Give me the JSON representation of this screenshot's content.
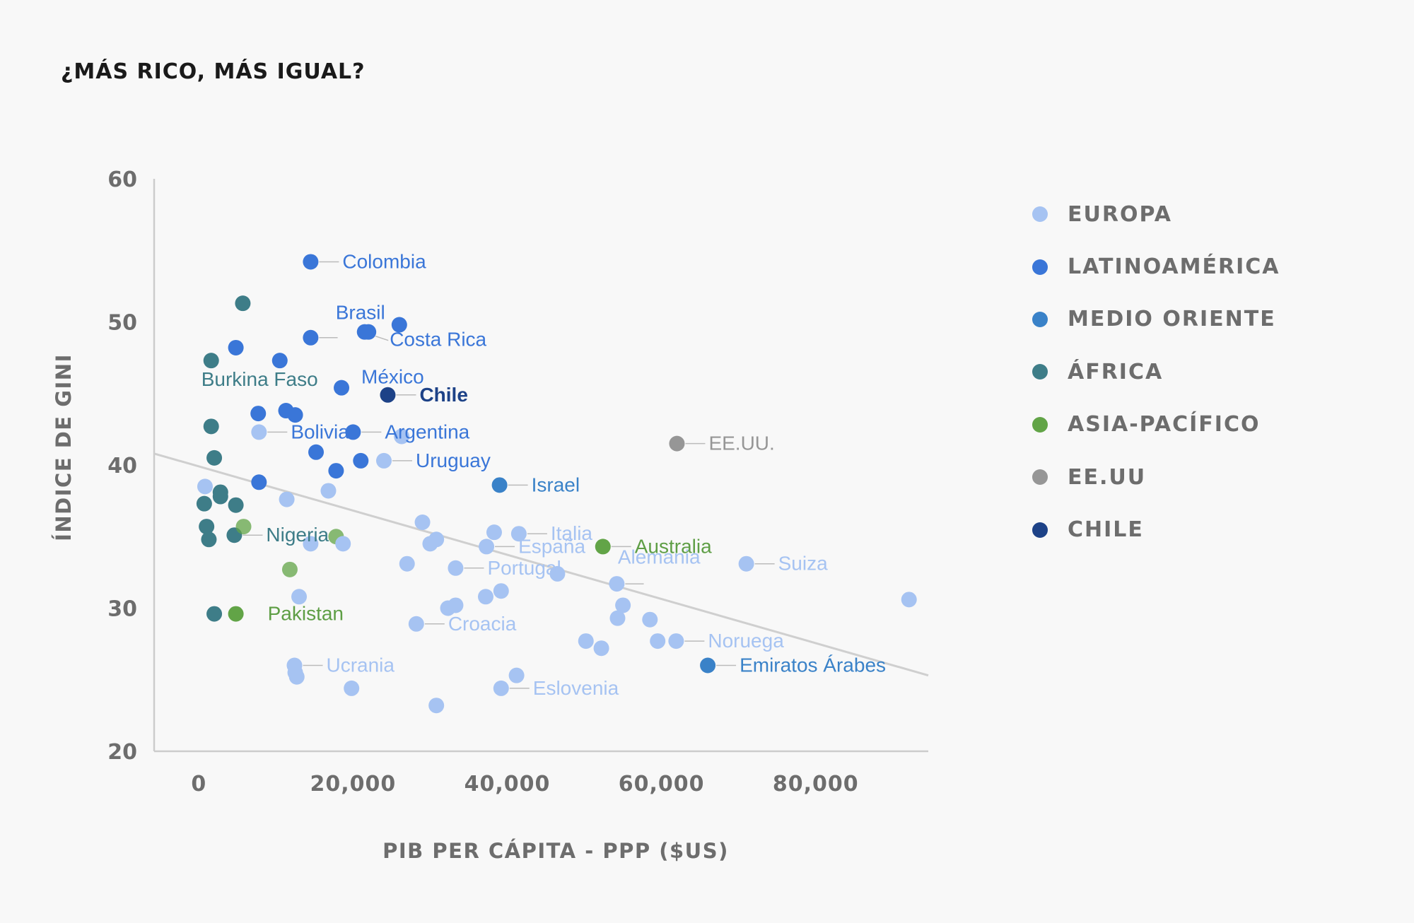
{
  "chart_data": {
    "type": "scatter",
    "title": "¿MÁS RICO, MÁS IGUAL?",
    "xlabel": "PIB PER CÁPITA - PPP ($US)",
    "ylabel": "ÍNDICE DE GINI",
    "xlim": [
      -5800,
      94600
    ],
    "ylim": [
      20,
      60
    ],
    "xticks": [
      0,
      20000,
      40000,
      60000,
      80000
    ],
    "xtick_labels": [
      "0",
      "20,000",
      "40,000",
      "60,000",
      "80,000"
    ],
    "yticks": [
      20,
      30,
      40,
      50,
      60
    ],
    "ytick_labels": [
      "20",
      "30",
      "40",
      "50",
      "60"
    ],
    "grid": false,
    "legend_position": "right",
    "trendline": {
      "x1": -5800,
      "y1": 40.8,
      "x2": 94600,
      "y2": 25.3
    },
    "groups": [
      {
        "key": "europa",
        "name": "EUROPA",
        "color": "#a6c3f2"
      },
      {
        "key": "latam",
        "name": "LATINOAMÉRICA",
        "color": "#3a76d8"
      },
      {
        "key": "medio",
        "name": "MEDIO ORIENTE",
        "color": "#3a82c8"
      },
      {
        "key": "africa",
        "name": "ÁFRICA",
        "color": "#3e7d88"
      },
      {
        "key": "asia",
        "name": "ASIA-PACÍFICO",
        "color": "#62a447"
      },
      {
        "key": "eeuu",
        "name": "EE.UU",
        "color": "#969696"
      },
      {
        "key": "chile",
        "name": "CHILE",
        "color": "#1d4287"
      }
    ],
    "points": [
      {
        "g": "latam",
        "x": 14500,
        "y": 54.2,
        "label": "Colombia",
        "side": "right"
      },
      {
        "g": "latam",
        "x": 26000,
        "y": 49.8
      },
      {
        "g": "latam",
        "x": 21500,
        "y": 49.3,
        "label": "Brasil",
        "side": "above"
      },
      {
        "g": "latam",
        "x": 14500,
        "y": 48.9,
        "lead": 3500
      },
      {
        "g": "latam",
        "x": 22000,
        "y": 49.3,
        "label": "Costa Rica",
        "side": "right-down"
      },
      {
        "g": "latam",
        "x": 4800,
        "y": 48.2
      },
      {
        "g": "latam",
        "x": 10500,
        "y": 47.3
      },
      {
        "g": "latam",
        "x": 18500,
        "y": 45.4,
        "label": "México",
        "side": "right-up"
      },
      {
        "g": "chile",
        "x": 24500,
        "y": 44.9,
        "label": "Chile",
        "side": "right",
        "bold": true
      },
      {
        "g": "latam",
        "x": 7700,
        "y": 43.6
      },
      {
        "g": "latam",
        "x": 11300,
        "y": 43.8
      },
      {
        "g": "latam",
        "x": 12500,
        "y": 43.5
      },
      {
        "g": "latam",
        "x": 20000,
        "y": 42.3,
        "label": "Argentina",
        "side": "right"
      },
      {
        "g": "latam",
        "x": 15200,
        "y": 40.9
      },
      {
        "g": "latam",
        "x": 17800,
        "y": 39.6
      },
      {
        "g": "latam",
        "x": 21000,
        "y": 40.3
      },
      {
        "g": "latam",
        "x": 7800,
        "y": 38.8
      },
      {
        "g": "europa",
        "x": 7800,
        "y": 42.3,
        "label": "Bolivia",
        "side": "right"
      },
      {
        "g": "europa",
        "x": 24000,
        "y": 40.3,
        "label": "Uruguay",
        "side": "right"
      },
      {
        "g": "europa",
        "x": 26300,
        "y": 42.0
      },
      {
        "g": "medio",
        "x": 39000,
        "y": 38.6,
        "label": "Israel",
        "side": "right"
      },
      {
        "g": "eeuu",
        "x": 62000,
        "y": 41.5,
        "label": "EE.UU.",
        "side": "right"
      },
      {
        "g": "africa",
        "x": 5700,
        "y": 51.3
      },
      {
        "g": "africa",
        "x": 1600,
        "y": 47.3,
        "label": "Burkina Faso",
        "side": "below"
      },
      {
        "g": "africa",
        "x": 1600,
        "y": 42.7
      },
      {
        "g": "africa",
        "x": 2000,
        "y": 40.5
      },
      {
        "g": "africa",
        "x": 2800,
        "y": 38.1
      },
      {
        "g": "africa",
        "x": 2800,
        "y": 37.8
      },
      {
        "g": "africa",
        "x": 700,
        "y": 37.3
      },
      {
        "g": "africa",
        "x": 4800,
        "y": 37.2
      },
      {
        "g": "africa",
        "x": 1000,
        "y": 35.7
      },
      {
        "g": "africa",
        "x": 1300,
        "y": 34.8
      },
      {
        "g": "africa",
        "x": 4600,
        "y": 35.1,
        "label": "Nigeria",
        "side": "right"
      },
      {
        "g": "africa",
        "x": 2000,
        "y": 29.6
      },
      {
        "g": "asia",
        "x": 4800,
        "y": 29.6,
        "label": "Pakistan",
        "side": "right-far"
      },
      {
        "g": "asia",
        "x": 5800,
        "y": 35.7,
        "light": true
      },
      {
        "g": "asia",
        "x": 17800,
        "y": 35.0,
        "light": true
      },
      {
        "g": "asia",
        "x": 11800,
        "y": 32.7,
        "light": true
      },
      {
        "g": "asia",
        "x": 52400,
        "y": 34.3,
        "label": "Australia",
        "side": "right"
      },
      {
        "g": "europa",
        "x": 800,
        "y": 38.5
      },
      {
        "g": "europa",
        "x": 11400,
        "y": 37.6
      },
      {
        "g": "europa",
        "x": 16800,
        "y": 38.2
      },
      {
        "g": "europa",
        "x": 14500,
        "y": 34.5
      },
      {
        "g": "europa",
        "x": 18700,
        "y": 34.5
      },
      {
        "g": "europa",
        "x": 13000,
        "y": 30.8
      },
      {
        "g": "europa",
        "x": 12400,
        "y": 26.0,
        "label": "Ucrania",
        "side": "right"
      },
      {
        "g": "europa",
        "x": 12500,
        "y": 25.5
      },
      {
        "g": "europa",
        "x": 12700,
        "y": 25.2
      },
      {
        "g": "europa",
        "x": 19800,
        "y": 24.4
      },
      {
        "g": "europa",
        "x": 29000,
        "y": 36.0
      },
      {
        "g": "europa",
        "x": 30800,
        "y": 34.8
      },
      {
        "g": "europa",
        "x": 30000,
        "y": 34.5
      },
      {
        "g": "europa",
        "x": 27000,
        "y": 33.1
      },
      {
        "g": "europa",
        "x": 33300,
        "y": 32.8,
        "label": "Portugal",
        "side": "right"
      },
      {
        "g": "europa",
        "x": 38300,
        "y": 35.3
      },
      {
        "g": "europa",
        "x": 41500,
        "y": 35.2,
        "label": "Italia",
        "side": "right"
      },
      {
        "g": "europa",
        "x": 37300,
        "y": 34.3,
        "label": "España",
        "side": "right"
      },
      {
        "g": "europa",
        "x": 46500,
        "y": 32.4
      },
      {
        "g": "europa",
        "x": 28200,
        "y": 28.9,
        "label": "Croacia",
        "side": "right"
      },
      {
        "g": "europa",
        "x": 32300,
        "y": 30.0
      },
      {
        "g": "europa",
        "x": 33300,
        "y": 30.2
      },
      {
        "g": "europa",
        "x": 37200,
        "y": 30.8
      },
      {
        "g": "europa",
        "x": 39200,
        "y": 31.2
      },
      {
        "g": "europa",
        "x": 39200,
        "y": 24.4,
        "label": "Eslovenia",
        "side": "right"
      },
      {
        "g": "europa",
        "x": 41200,
        "y": 25.3
      },
      {
        "g": "europa",
        "x": 30800,
        "y": 23.2
      },
      {
        "g": "europa",
        "x": 54200,
        "y": 31.7,
        "lead": 3500
      },
      {
        "g": "europa",
        "x": 55000,
        "y": 30.2
      },
      {
        "g": "europa",
        "x": 54300,
        "y": 29.3
      },
      {
        "g": "europa",
        "x": 58500,
        "y": 29.2
      },
      {
        "g": "europa",
        "x": 50200,
        "y": 27.7
      },
      {
        "g": "europa",
        "x": 52200,
        "y": 27.2
      },
      {
        "g": "europa",
        "x": 59500,
        "y": 27.7
      },
      {
        "g": "europa",
        "x": 61900,
        "y": 27.7,
        "label": "Noruega",
        "side": "right"
      },
      {
        "g": "europa",
        "x": 71000,
        "y": 33.1,
        "label": "Suiza",
        "side": "right"
      },
      {
        "g": "europa",
        "x": 92100,
        "y": 30.6
      },
      {
        "g": "medio",
        "x": 66000,
        "y": 26.0,
        "label": "Emiratos Árabes",
        "side": "right"
      }
    ],
    "free_labels": [
      {
        "text": "Alemania",
        "x": 58000,
        "y": 33.5,
        "g": "europa"
      }
    ]
  }
}
